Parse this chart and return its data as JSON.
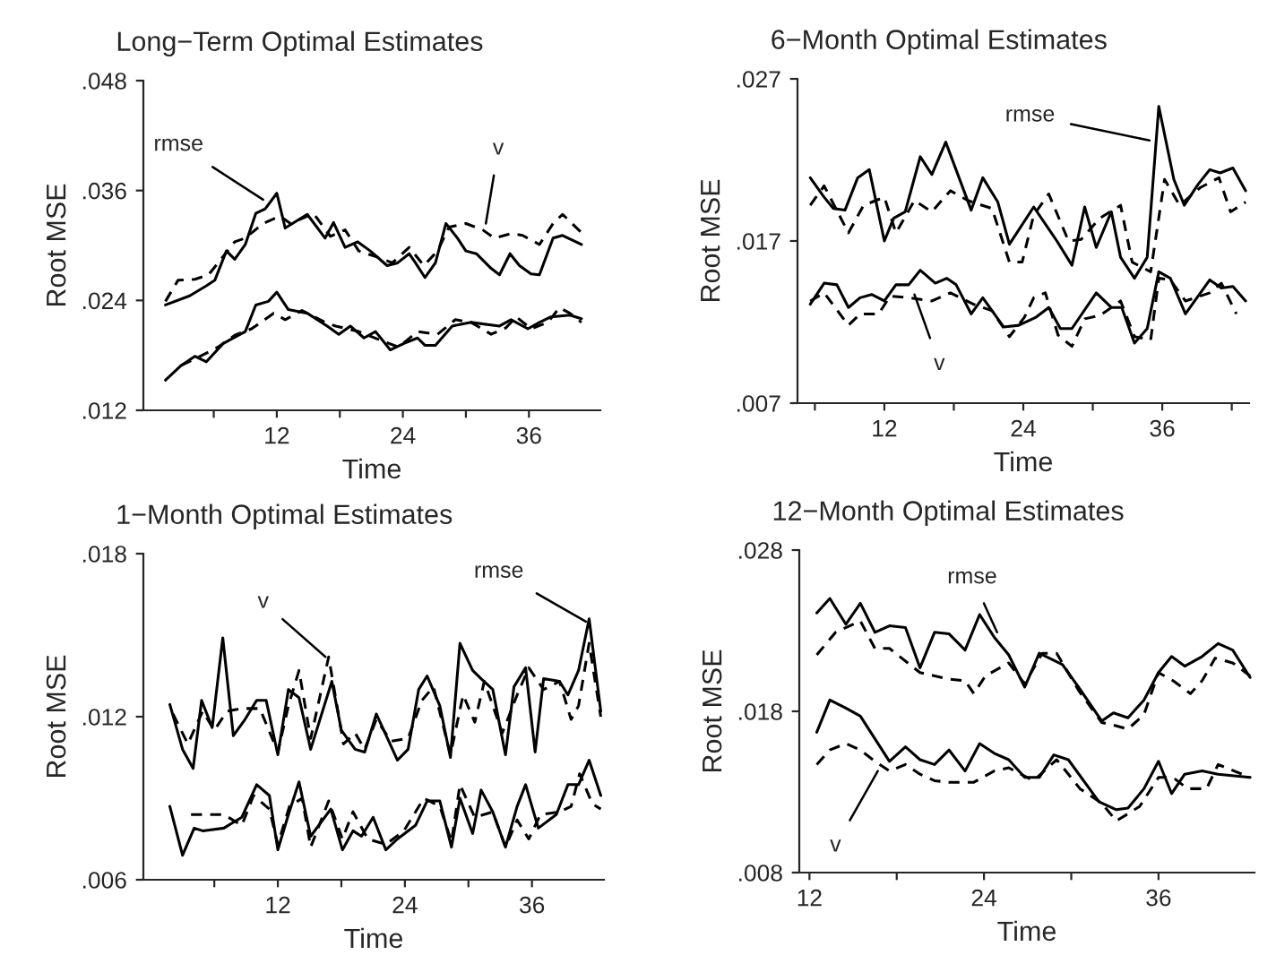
{
  "chart_data": [
    {
      "type": "line",
      "title": "Long−Term Optimal Estimates",
      "xlabel": "Time",
      "ylabel": "Root MSE",
      "xlim": [
        -0.7,
        42.8
      ],
      "xticks": [
        {
          "value": 6,
          "label": null
        },
        12,
        {
          "value": 18,
          "label": null
        },
        24,
        {
          "value": 30,
          "label": null
        },
        36
      ],
      "ylim": [
        0.012,
        0.048
      ],
      "yticks": [
        {
          "value": 0.012,
          "label": ".012"
        },
        {
          "value": 0.024,
          "label": ".024"
        },
        {
          "value": 0.036,
          "label": ".036"
        },
        {
          "value": 0.048,
          "label": ".048"
        }
      ],
      "annotations": [
        {
          "text": "rmse",
          "x": 10.7,
          "y": 0.035
        },
        {
          "text": "v",
          "x": 31.9,
          "y": 0.0324
        }
      ],
      "series": [
        {
          "color": "#000000",
          "line_style": "solid",
          "x": [
            1.4,
            3.7,
            5.3,
            6.1,
            7.2,
            8.0,
            9.0,
            10.0,
            10.9,
            12,
            12.8,
            14.9,
            16.6,
            17.4,
            18.5,
            19.7,
            20.9,
            22.5,
            23.5,
            24.6,
            25.2,
            26.1,
            27.1,
            28.1,
            29.2,
            30.0,
            31.0,
            32.4,
            33.2,
            34.2,
            35.1,
            36.2,
            37.0,
            38.3,
            39.2,
            41.0
          ],
          "values": [
            0.0235,
            0.0245,
            0.0256,
            0.0262,
            0.0294,
            0.0285,
            0.0301,
            0.0335,
            0.034,
            0.0357,
            0.0319,
            0.0334,
            0.0308,
            0.0325,
            0.0298,
            0.0304,
            0.0294,
            0.0278,
            0.0281,
            0.0291,
            0.0281,
            0.0265,
            0.0281,
            0.0324,
            0.0308,
            0.0294,
            0.0291,
            0.0275,
            0.0268,
            0.0291,
            0.0278,
            0.0269,
            0.0268,
            0.0308,
            0.0311,
            0.0301
          ]
        },
        {
          "color": "#000000",
          "line_style": "dashed",
          "x": [
            1.4,
            2.6,
            4.2,
            5.5,
            6.9,
            8.0,
            9.0,
            10.7,
            12.3,
            13.3,
            15.5,
            17.1,
            18.5,
            19.8,
            21.4,
            23.0,
            24.6,
            26.0,
            27.3,
            28.4,
            30.0,
            31.6,
            32.7,
            34.3,
            35.4,
            37.0,
            38.3,
            39.2,
            41.0
          ],
          "values": [
            0.0239,
            0.0262,
            0.0263,
            0.0268,
            0.0288,
            0.0304,
            0.0308,
            0.0324,
            0.0332,
            0.0324,
            0.0335,
            0.031,
            0.0317,
            0.0294,
            0.0288,
            0.0281,
            0.0298,
            0.0278,
            0.0294,
            0.032,
            0.0324,
            0.0317,
            0.0308,
            0.0313,
            0.0311,
            0.0301,
            0.0324,
            0.0334,
            0.0314
          ]
        },
        {
          "color": "#000000",
          "line_style": "solid",
          "x": [
            1.4,
            2.9,
            4.2,
            5.3,
            6.9,
            9.0,
            10.0,
            11.2,
            12,
            13.1,
            14.9,
            16.8,
            17.9,
            19.0,
            20.3,
            21.4,
            22.8,
            24.1,
            25.4,
            26.1,
            27.1,
            28.7,
            30.5,
            33.2,
            34.3,
            35.9,
            37.0,
            38.1,
            39.9,
            41.0
          ],
          "values": [
            0.0153,
            0.0169,
            0.0179,
            0.0173,
            0.0193,
            0.0206,
            0.0235,
            0.0239,
            0.0249,
            0.023,
            0.0226,
            0.0212,
            0.0203,
            0.0212,
            0.0199,
            0.0206,
            0.0186,
            0.0193,
            0.0199,
            0.0191,
            0.0191,
            0.0212,
            0.0216,
            0.0212,
            0.0219,
            0.0209,
            0.0216,
            0.0222,
            0.0224,
            0.022
          ]
        },
        {
          "color": "#000000",
          "line_style": "dashed",
          "x": [
            2.9,
            4.2,
            6.4,
            8.0,
            9.6,
            11.7,
            12.8,
            14.4,
            16.6,
            17.6,
            19.8,
            22.0,
            23.6,
            25.4,
            27.3,
            29.0,
            30.5,
            32.4,
            33.8,
            34.8,
            36.2,
            37.8,
            38.9,
            39.9,
            41.0
          ],
          "values": [
            0.0169,
            0.0176,
            0.0189,
            0.0202,
            0.0209,
            0.0226,
            0.0219,
            0.0229,
            0.0216,
            0.0212,
            0.0206,
            0.0196,
            0.0189,
            0.0206,
            0.0203,
            0.0219,
            0.0216,
            0.0203,
            0.021,
            0.0222,
            0.0209,
            0.0216,
            0.0232,
            0.0226,
            0.0216
          ]
        }
      ]
    },
    {
      "type": "line",
      "title": "6−Month Optimal Estimates",
      "xlabel": "Time",
      "ylabel": "Root MSE",
      "xlim": [
        4.5,
        43.5
      ],
      "xticks": [
        {
          "value": 6,
          "label": null
        },
        12,
        {
          "value": 18,
          "label": null
        },
        24,
        {
          "value": 30,
          "label": null
        },
        36,
        {
          "value": 42,
          "label": null
        }
      ],
      "ylim": [
        0.007,
        0.027
      ],
      "yticks": [
        {
          "value": 0.007,
          "label": ".007"
        },
        {
          "value": 0.017,
          "label": ".017"
        },
        {
          "value": 0.027,
          "label": ".027"
        }
      ],
      "annotations": [
        {
          "text": "rmse",
          "x": 34.9,
          "y": 0.0232
        },
        {
          "text": "v",
          "x": 14.6,
          "y": 0.0137
        }
      ],
      "series": [
        {
          "color": "#000000",
          "line_style": "solid",
          "x": [
            5.6,
            6.8,
            7.6,
            8.6,
            9.7,
            10.7,
            12,
            12.8,
            13.8,
            15.1,
            16.1,
            17.3,
            19.5,
            20.5,
            21.8,
            22.8,
            24.9,
            26.9,
            28.2,
            29.3,
            30.3,
            31.6,
            32.4,
            33.6,
            34.7,
            35.7,
            37.0,
            37.9,
            39.1,
            40.1,
            41.0,
            42.1,
            43.2
          ],
          "values": [
            0.0209,
            0.0197,
            0.019,
            0.0189,
            0.0209,
            0.0214,
            0.017,
            0.0184,
            0.0188,
            0.0222,
            0.0211,
            0.0231,
            0.0189,
            0.0209,
            0.0194,
            0.0168,
            0.0191,
            0.017,
            0.0155,
            0.0191,
            0.0166,
            0.0188,
            0.016,
            0.0147,
            0.016,
            0.0253,
            0.0208,
            0.0192,
            0.0205,
            0.0214,
            0.0212,
            0.0215,
            0.0201
          ]
        },
        {
          "color": "#000000",
          "line_style": "dashed",
          "x": [
            5.6,
            6.8,
            8.9,
            10.2,
            12,
            13.0,
            14.6,
            16.1,
            17.7,
            19.2,
            21.3,
            22.8,
            23.9,
            24.9,
            26.2,
            27.9,
            29.0,
            30.6,
            32.4,
            33.4,
            35.0,
            36.2,
            37.5,
            39.3,
            40.9,
            41.9,
            43.2
          ],
          "values": [
            0.0192,
            0.0204,
            0.0175,
            0.0192,
            0.0197,
            0.0175,
            0.0195,
            0.0188,
            0.0201,
            0.0195,
            0.019,
            0.0157,
            0.0157,
            0.0186,
            0.0199,
            0.017,
            0.0171,
            0.0184,
            0.0192,
            0.0157,
            0.0151,
            0.0208,
            0.0192,
            0.0203,
            0.0209,
            0.0188,
            0.0194
          ]
        },
        {
          "color": "#000000",
          "line_style": "solid",
          "x": [
            5.6,
            6.8,
            7.9,
            8.9,
            9.9,
            10.9,
            12,
            13.0,
            14.1,
            15.1,
            16.4,
            17.4,
            18.2,
            19.5,
            20.5,
            22.3,
            23.6,
            25.1,
            26.2,
            27.2,
            28.2,
            30.3,
            31.6,
            32.5,
            33.6,
            34.7,
            35.7,
            36.7,
            38.0,
            40.1,
            41.1,
            42.1,
            43.2
          ],
          "values": [
            0.0131,
            0.0144,
            0.0143,
            0.0129,
            0.0135,
            0.0137,
            0.0133,
            0.0143,
            0.0143,
            0.0152,
            0.0144,
            0.0147,
            0.0143,
            0.0125,
            0.0135,
            0.0117,
            0.0118,
            0.0123,
            0.0129,
            0.0116,
            0.0116,
            0.0138,
            0.0129,
            0.0129,
            0.0107,
            0.0116,
            0.0151,
            0.0147,
            0.0125,
            0.0146,
            0.0141,
            0.0142,
            0.0133
          ]
        },
        {
          "color": "#000000",
          "line_style": "dashed",
          "x": [
            5.6,
            6.8,
            8.9,
            9.9,
            11.5,
            12.5,
            14.1,
            16.1,
            17.7,
            19.7,
            21.3,
            22.8,
            24.1,
            24.9,
            25.9,
            27.0,
            28.2,
            29.3,
            30.6,
            32.4,
            33.6,
            35.0,
            35.7,
            36.7,
            38.0,
            40.1,
            41.1,
            42.4
          ],
          "values": [
            0.0133,
            0.0138,
            0.0118,
            0.0125,
            0.0125,
            0.0136,
            0.0135,
            0.0133,
            0.0138,
            0.0131,
            0.0127,
            0.0111,
            0.0123,
            0.0135,
            0.0138,
            0.0112,
            0.0105,
            0.0122,
            0.0124,
            0.0133,
            0.0111,
            0.0109,
            0.0147,
            0.0146,
            0.0133,
            0.0138,
            0.0144,
            0.0125
          ]
        }
      ]
    },
    {
      "type": "line",
      "title": "1−Month Optimal Estimates",
      "xlabel": "Time",
      "ylabel": "Root MSE",
      "xlim": [
        -0.7,
        42.8
      ],
      "xticks": [
        {
          "value": 6,
          "label": null
        },
        12,
        {
          "value": 18,
          "label": null
        },
        24,
        {
          "value": 30,
          "label": null
        },
        36
      ],
      "ylim": [
        0.006,
        0.018
      ],
      "yticks": [
        {
          "value": 0.006,
          "label": ".006"
        },
        {
          "value": 0.012,
          "label": ".012"
        },
        {
          "value": 0.018,
          "label": ".018"
        }
      ],
      "annotations": [
        {
          "text": "v",
          "x": 16.5,
          "y": 0.0142
        },
        {
          "text": "rmse",
          "x": 41.1,
          "y": 0.0155
        }
      ],
      "series": [
        {
          "color": "#000000",
          "line_style": "solid",
          "x": [
            1.8,
            3.0,
            4.0,
            4.8,
            5.8,
            6.8,
            7.8,
            8.9,
            10.0,
            10.9,
            12,
            13.0,
            14.0,
            15.1,
            17.1,
            18.0,
            19.3,
            20.2,
            21.3,
            23.3,
            24.3,
            25.3,
            26.1,
            27.3,
            28.3,
            29.2,
            30.4,
            31.2,
            32.3,
            33.5,
            34.3,
            35.4,
            36.3,
            37.1,
            38.6,
            39.4,
            40.4,
            41.4,
            42.5
          ],
          "values": [
            0.01245,
            0.0108,
            0.0101,
            0.0126,
            0.0116,
            0.0149,
            0.0113,
            0.0119,
            0.0126,
            0.0126,
            0.0106,
            0.013,
            0.0127,
            0.0108,
            0.0133,
            0.0115,
            0.0108,
            0.0107,
            0.0121,
            0.0104,
            0.0108,
            0.013,
            0.0135,
            0.0124,
            0.0105,
            0.0147,
            0.0137,
            0.0134,
            0.013,
            0.0106,
            0.0131,
            0.0138,
            0.0107,
            0.0134,
            0.0133,
            0.0128,
            0.0137,
            0.0156,
            0.0122
          ]
        },
        {
          "color": "#000000",
          "line_style": "dashed",
          "x": [
            2.1,
            3.5,
            4.9,
            6.0,
            7.2,
            8.6,
            10.3,
            12,
            13.0,
            14.0,
            15.1,
            16.8,
            18.2,
            19.3,
            20.2,
            21.3,
            22.7,
            24.3,
            25.6,
            26.7,
            28.3,
            29.5,
            30.6,
            31.5,
            33.2,
            34.6,
            35.7,
            37.1,
            38.6,
            39.7,
            40.4,
            41.4,
            42.5
          ],
          "values": [
            0.0121,
            0.011,
            0.0122,
            0.0115,
            0.0122,
            0.0123,
            0.0123,
            0.0107,
            0.0124,
            0.0137,
            0.0112,
            0.0142,
            0.011,
            0.0114,
            0.0108,
            0.0119,
            0.0111,
            0.0112,
            0.0126,
            0.0131,
            0.0106,
            0.0128,
            0.0118,
            0.0133,
            0.0114,
            0.0128,
            0.0138,
            0.013,
            0.0133,
            0.0119,
            0.0124,
            0.0147,
            0.012
          ]
        },
        {
          "color": "#000000",
          "line_style": "solid",
          "x": [
            1.8,
            3.0,
            4.1,
            4.9,
            6.9,
            8.6,
            10.0,
            11.2,
            12,
            13.0,
            14.0,
            15.1,
            17.0,
            18.1,
            19.1,
            19.9,
            21.0,
            22.2,
            23.3,
            25.0,
            26.1,
            27.3,
            28.4,
            29.2,
            30.4,
            31.2,
            32.3,
            33.5,
            34.6,
            35.4,
            36.6,
            38.3,
            39.4,
            40.4,
            41.4,
            42.5
          ],
          "values": [
            0.0087,
            0.0069,
            0.0079,
            0.0078,
            0.0079,
            0.0083,
            0.0095,
            0.0091,
            0.0071,
            0.0084,
            0.0096,
            0.0076,
            0.0086,
            0.0071,
            0.0078,
            0.0076,
            0.0083,
            0.0071,
            0.0075,
            0.008,
            0.0089,
            0.0089,
            0.0072,
            0.009,
            0.0077,
            0.0093,
            0.0085,
            0.0072,
            0.0087,
            0.0095,
            0.0079,
            0.0084,
            0.0095,
            0.0095,
            0.0104,
            0.0091
          ]
        },
        {
          "color": "#000000",
          "line_style": "dashed",
          "x": [
            3.8,
            4.9,
            6.9,
            8.6,
            9.7,
            11.2,
            12,
            13.1,
            14.3,
            15.1,
            16.8,
            18.1,
            19.1,
            20.5,
            22.2,
            23.9,
            25.8,
            27.3,
            28.4,
            29.2,
            30.6,
            32.3,
            33.5,
            34.6,
            35.7,
            36.8,
            38.6,
            39.7,
            40.5,
            41.7,
            42.5
          ],
          "values": [
            0.0084,
            0.0084,
            0.0084,
            0.008,
            0.0091,
            0.0086,
            0.0073,
            0.0087,
            0.009,
            0.0072,
            0.0089,
            0.0075,
            0.0085,
            0.0075,
            0.0073,
            0.0078,
            0.009,
            0.0087,
            0.0074,
            0.0095,
            0.0083,
            0.0085,
            0.0072,
            0.0082,
            0.0075,
            0.0084,
            0.0085,
            0.0087,
            0.0099,
            0.0088,
            0.0086
          ]
        }
      ]
    },
    {
      "type": "line",
      "title": "12−Month Optimal Estimates",
      "xlabel": "Time",
      "ylabel": "Root MSE",
      "xlim": [
        11.3,
        42.6
      ],
      "xticks": [
        12,
        {
          "value": 18,
          "label": null
        },
        24,
        {
          "value": 30,
          "label": null
        },
        36
      ],
      "ylim": [
        0.008,
        0.028
      ],
      "yticks": [
        {
          "value": 0.008,
          "label": ".008"
        },
        {
          "value": 0.018,
          "label": ".018"
        },
        {
          "value": 0.028,
          "label": ".028"
        }
      ],
      "annotations": [
        {
          "text": "rmse",
          "x": 24.9,
          "y": 0.0229
        },
        {
          "text": "v",
          "x": 16.7,
          "y": 0.0143
        }
      ],
      "series": [
        {
          "color": "#000000",
          "line_style": "solid",
          "x": [
            12.5,
            13.4,
            14.5,
            15.5,
            16.5,
            17.5,
            18.6,
            19.6,
            20.6,
            21.6,
            22.7,
            23.7,
            24.7,
            25.7,
            26.8,
            27.8,
            29.4,
            30.5,
            32.1,
            32.9,
            33.9,
            35.0,
            36.0,
            36.9,
            37.8,
            39.0,
            40.1,
            41.1,
            42.3
          ],
          "values": [
            0.0241,
            0.025,
            0.0234,
            0.0247,
            0.0229,
            0.0233,
            0.0232,
            0.0207,
            0.0229,
            0.0228,
            0.0218,
            0.024,
            0.0226,
            0.0215,
            0.0195,
            0.0216,
            0.0209,
            0.0195,
            0.0174,
            0.0179,
            0.0176,
            0.0187,
            0.0204,
            0.0214,
            0.0208,
            0.0214,
            0.0222,
            0.0218,
            0.0201
          ]
        },
        {
          "color": "#000000",
          "line_style": "dashed",
          "x": [
            12.5,
            13.8,
            15.5,
            16.5,
            17.5,
            19.6,
            21.6,
            22.7,
            23.3,
            24.1,
            25.7,
            26.8,
            28.0,
            29.0,
            30.5,
            32.1,
            33.1,
            33.9,
            35.0,
            36.0,
            37.0,
            38.2,
            39.0,
            39.9,
            41.1,
            42.3
          ],
          "values": [
            0.0215,
            0.0229,
            0.0236,
            0.0219,
            0.0219,
            0.0204,
            0.02,
            0.0199,
            0.0191,
            0.0202,
            0.021,
            0.0197,
            0.0216,
            0.0216,
            0.0193,
            0.0173,
            0.0171,
            0.0169,
            0.0178,
            0.0204,
            0.0199,
            0.0191,
            0.0199,
            0.0213,
            0.021,
            0.0202
          ]
        },
        {
          "color": "#000000",
          "line_style": "solid",
          "x": [
            12.5,
            13.4,
            14.5,
            15.5,
            16.5,
            17.5,
            18.6,
            19.6,
            20.6,
            21.6,
            22.7,
            23.7,
            24.7,
            25.7,
            26.8,
            27.8,
            28.8,
            29.8,
            31.9,
            33.1,
            33.9,
            35.0,
            36.0,
            36.9,
            37.8,
            39.0,
            40.1,
            42.3
          ],
          "values": [
            0.0167,
            0.0187,
            0.0182,
            0.0177,
            0.0163,
            0.0149,
            0.0158,
            0.015,
            0.0147,
            0.0156,
            0.0143,
            0.016,
            0.0154,
            0.015,
            0.0139,
            0.0139,
            0.0153,
            0.015,
            0.0124,
            0.0119,
            0.012,
            0.0132,
            0.0149,
            0.0129,
            0.0141,
            0.0143,
            0.0141,
            0.0139
          ]
        },
        {
          "color": "#000000",
          "line_style": "dashed",
          "x": [
            12.5,
            13.4,
            14.5,
            15.5,
            16.5,
            17.5,
            18.6,
            19.6,
            20.6,
            21.6,
            23.3,
            24.7,
            25.7,
            27.4,
            29.0,
            30.6,
            32.1,
            33.1,
            34.7,
            36.0,
            37.0,
            38.0,
            39.3,
            40.1,
            42.3
          ],
          "values": [
            0.0147,
            0.0156,
            0.016,
            0.0156,
            0.0149,
            0.0143,
            0.0147,
            0.0141,
            0.0137,
            0.0136,
            0.0136,
            0.0143,
            0.0145,
            0.0137,
            0.015,
            0.0132,
            0.0123,
            0.0112,
            0.0121,
            0.0139,
            0.0139,
            0.0132,
            0.0132,
            0.0147,
            0.0139
          ]
        }
      ]
    }
  ]
}
